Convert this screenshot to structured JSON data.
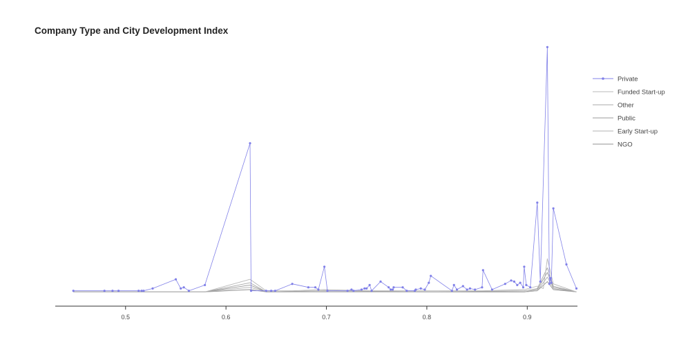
{
  "chart_data": {
    "type": "line",
    "title": "Company Type and City Development Index",
    "xlabel": "",
    "ylabel": "",
    "xlim": [
      0.43,
      0.95
    ],
    "ylim": [
      0,
      220
    ],
    "xticks": [
      0.5,
      0.6,
      0.7,
      0.8,
      0.9
    ],
    "grid": false,
    "legend": "right",
    "series": [
      {
        "name": "Private",
        "color": "#8080e8",
        "markers": true,
        "points": [
          [
            0.448,
            2
          ],
          [
            0.479,
            2
          ],
          [
            0.487,
            2
          ],
          [
            0.493,
            2
          ],
          [
            0.513,
            2
          ],
          [
            0.516,
            2
          ],
          [
            0.518,
            2
          ],
          [
            0.527,
            4
          ],
          [
            0.55,
            12
          ],
          [
            0.555,
            4
          ],
          [
            0.558,
            5
          ],
          [
            0.563,
            2
          ],
          [
            0.579,
            7
          ],
          [
            0.624,
            131
          ],
          [
            0.625,
            2
          ],
          [
            0.64,
            2
          ],
          [
            0.645,
            2
          ],
          [
            0.649,
            2
          ],
          [
            0.666,
            8
          ],
          [
            0.682,
            5
          ],
          [
            0.689,
            5
          ],
          [
            0.692,
            3
          ],
          [
            0.698,
            23
          ],
          [
            0.701,
            2
          ],
          [
            0.721,
            2
          ],
          [
            0.725,
            3
          ],
          [
            0.727,
            2
          ],
          [
            0.735,
            3
          ],
          [
            0.738,
            4
          ],
          [
            0.74,
            4
          ],
          [
            0.743,
            7
          ],
          [
            0.745,
            2
          ],
          [
            0.754,
            10
          ],
          [
            0.762,
            5
          ],
          [
            0.764,
            3
          ],
          [
            0.766,
            3
          ],
          [
            0.767,
            5
          ],
          [
            0.776,
            5
          ],
          [
            0.78,
            2
          ],
          [
            0.788,
            2
          ],
          [
            0.789,
            3
          ],
          [
            0.794,
            4
          ],
          [
            0.798,
            3
          ],
          [
            0.802,
            9
          ],
          [
            0.804,
            15
          ],
          [
            0.825,
            2
          ],
          [
            0.827,
            7
          ],
          [
            0.83,
            3
          ],
          [
            0.836,
            6
          ],
          [
            0.84,
            3
          ],
          [
            0.843,
            4
          ],
          [
            0.848,
            3
          ],
          [
            0.855,
            5
          ],
          [
            0.856,
            20
          ],
          [
            0.865,
            3
          ],
          [
            0.878,
            8
          ],
          [
            0.884,
            11
          ],
          [
            0.887,
            10
          ],
          [
            0.89,
            7
          ],
          [
            0.893,
            9
          ],
          [
            0.896,
            5
          ],
          [
            0.897,
            23
          ],
          [
            0.899,
            7
          ],
          [
            0.903,
            5
          ],
          [
            0.91,
            79
          ],
          [
            0.913,
            10
          ],
          [
            0.92,
            215
          ],
          [
            0.922,
            8
          ],
          [
            0.923,
            13
          ],
          [
            0.924,
            9
          ],
          [
            0.926,
            74
          ],
          [
            0.939,
            25
          ],
          [
            0.949,
            4
          ]
        ]
      },
      {
        "name": "Funded Start-up",
        "color": "#b8b8b8",
        "markers": false,
        "points": [
          [
            0.448,
            1
          ],
          [
            0.52,
            1
          ],
          [
            0.579,
            1
          ],
          [
            0.624,
            12
          ],
          [
            0.64,
            2
          ],
          [
            0.666,
            2
          ],
          [
            0.698,
            3
          ],
          [
            0.743,
            2
          ],
          [
            0.804,
            2
          ],
          [
            0.855,
            2
          ],
          [
            0.897,
            3
          ],
          [
            0.91,
            6
          ],
          [
            0.916,
            4
          ],
          [
            0.92,
            30
          ],
          [
            0.926,
            8
          ],
          [
            0.949,
            1
          ]
        ]
      },
      {
        "name": "Other",
        "color": "#a8a8a8",
        "markers": false,
        "points": [
          [
            0.448,
            1
          ],
          [
            0.579,
            1
          ],
          [
            0.624,
            9
          ],
          [
            0.64,
            1
          ],
          [
            0.698,
            2
          ],
          [
            0.804,
            1
          ],
          [
            0.897,
            2
          ],
          [
            0.91,
            4
          ],
          [
            0.92,
            22
          ],
          [
            0.926,
            6
          ],
          [
            0.949,
            1
          ]
        ]
      },
      {
        "name": "Public",
        "color": "#999999",
        "markers": false,
        "points": [
          [
            0.448,
            1
          ],
          [
            0.579,
            1
          ],
          [
            0.624,
            7
          ],
          [
            0.64,
            1
          ],
          [
            0.698,
            2
          ],
          [
            0.804,
            1
          ],
          [
            0.897,
            1
          ],
          [
            0.91,
            3
          ],
          [
            0.92,
            18
          ],
          [
            0.926,
            5
          ],
          [
            0.949,
            1
          ]
        ]
      },
      {
        "name": "Early Start-up",
        "color": "#b0b0b0",
        "markers": false,
        "points": [
          [
            0.448,
            1
          ],
          [
            0.579,
            1
          ],
          [
            0.624,
            5
          ],
          [
            0.64,
            1
          ],
          [
            0.698,
            1
          ],
          [
            0.804,
            1
          ],
          [
            0.897,
            1
          ],
          [
            0.91,
            2
          ],
          [
            0.92,
            14
          ],
          [
            0.926,
            4
          ],
          [
            0.949,
            1
          ]
        ]
      },
      {
        "name": "NGO",
        "color": "#909090",
        "markers": false,
        "points": [
          [
            0.448,
            1
          ],
          [
            0.579,
            1
          ],
          [
            0.624,
            3
          ],
          [
            0.64,
            1
          ],
          [
            0.698,
            1
          ],
          [
            0.804,
            1
          ],
          [
            0.897,
            1
          ],
          [
            0.91,
            2
          ],
          [
            0.92,
            10
          ],
          [
            0.926,
            3
          ],
          [
            0.949,
            1
          ]
        ]
      }
    ]
  }
}
